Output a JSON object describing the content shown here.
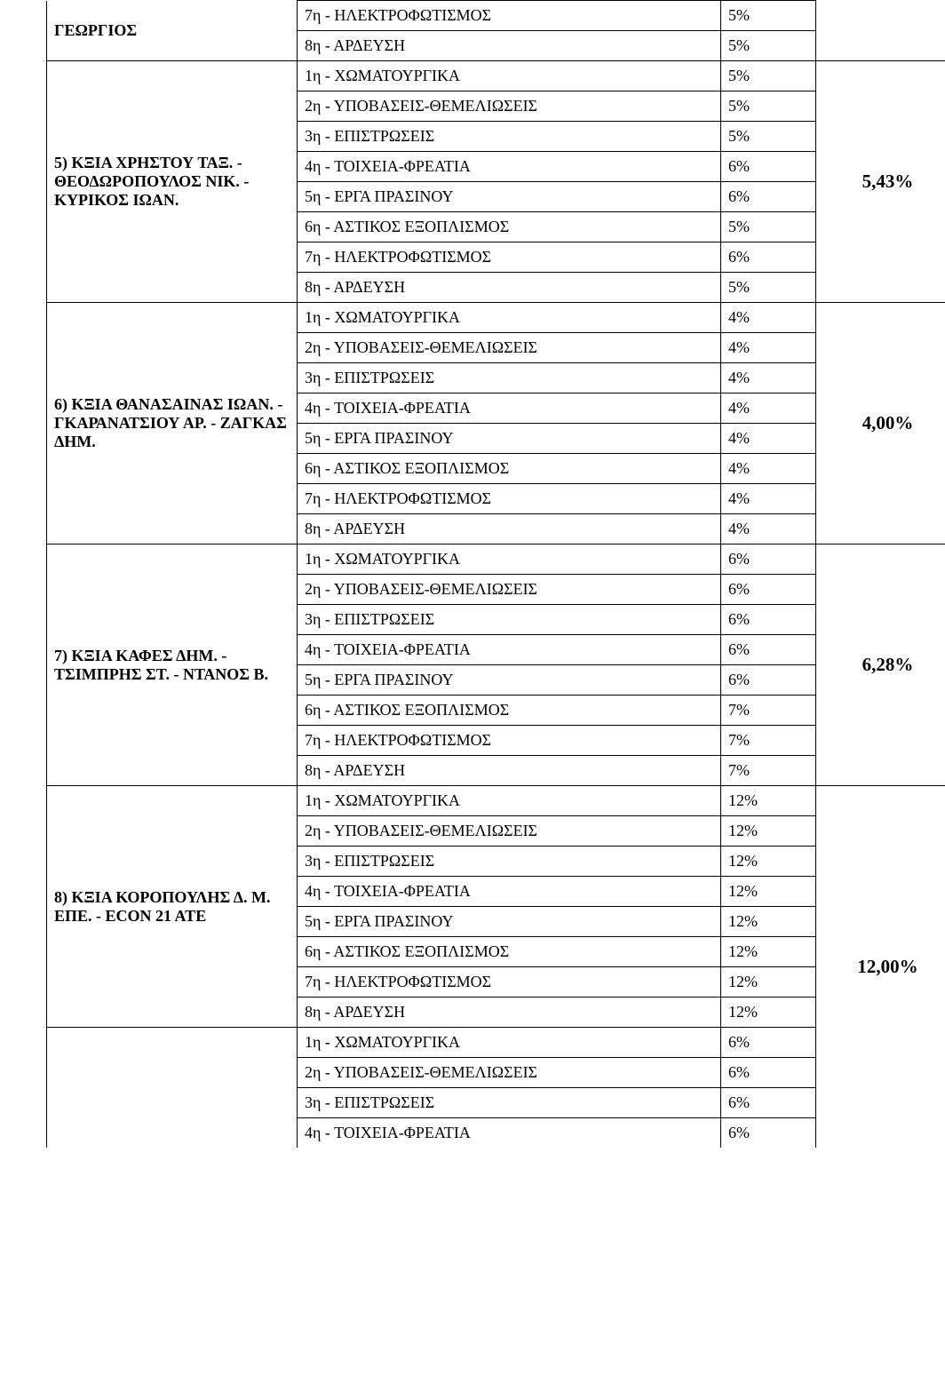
{
  "categories": {
    "r1": "1η - ΧΩΜΑΤΟΥΡΓΙΚΑ",
    "r2": "2η - ΥΠΟΒΑΣΕΙΣ-ΘΕΜΕΛΙΩΣΕΙΣ",
    "r3": "3η - ΕΠΙΣΤΡΩΣΕΙΣ",
    "r4": "4η - ΤΟΙΧΕΙΑ-ΦΡΕΑΤΙΑ",
    "r5": "5η - ΕΡΓΑ ΠΡΑΣΙΝΟΥ",
    "r6": "6η - ΑΣΤΙΚΟΣ ΕΞΟΠΛΙΣΜΟΣ",
    "r7": "7η - ΗΛΕΚΤΡΟΦΩΤΙΣΜΟΣ",
    "r8": "8η - ΑΡΔΕΥΣΗ"
  },
  "groups": {
    "g4": {
      "name": "ΓΕΩΡΓΙΟΣ",
      "r7": "5%",
      "r8": "5%"
    },
    "g5": {
      "name": "5) ΚΞΙΑ ΧΡΗΣΤΟΥ ΤΑΞ. - ΘΕΟΔΩΡΟΠΟΥΛΟΣ ΝΙΚ. - ΚΥΡΙΚΟΣ ΙΩΑΝ.",
      "r1": "5%",
      "r2": "5%",
      "r3": "5%",
      "r4": "6%",
      "r5": "6%",
      "r6": "5%",
      "r7": "6%",
      "r8": "5%",
      "total": "5,43%"
    },
    "g6": {
      "name": "6) ΚΞΙΑ ΘΑΝΑΣΑΙΝΑΣ ΙΩΑΝ. - ΓΚΑΡΑΝΑΤΣΙΟΥ ΑΡ. - ΖΑΓΚΑΣ ΔΗΜ.",
      "r1": "4%",
      "r2": "4%",
      "r3": "4%",
      "r4": "4%",
      "r5": "4%",
      "r6": "4%",
      "r7": "4%",
      "r8": "4%",
      "total": "4,00%"
    },
    "g7": {
      "name": "7) ΚΞΙΑ ΚΑΦΕΣ ΔΗΜ. - ΤΣΙΜΠΡΗΣ ΣΤ. - ΝΤΑΝΟΣ Β.",
      "r1": "6%",
      "r2": "6%",
      "r3": "6%",
      "r4": "6%",
      "r5": "6%",
      "r6": "7%",
      "r7": "7%",
      "r8": "7%",
      "total": "6,28%"
    },
    "g8": {
      "name": "8) ΚΞΙΑ ΚΟΡΟΠΟΥΛΗΣ Δ. Μ. ΕΠΕ. - ECON 21 ATE",
      "r1": "12%",
      "r2": "12%",
      "r3": "12%",
      "r4": "12%",
      "r5": "12%",
      "r6": "12%",
      "r7": "12%",
      "r8": "12%",
      "total": "12,00%"
    },
    "g9": {
      "r1": "6%",
      "r2": "6%",
      "r3": "6%",
      "r4": "6%"
    }
  }
}
